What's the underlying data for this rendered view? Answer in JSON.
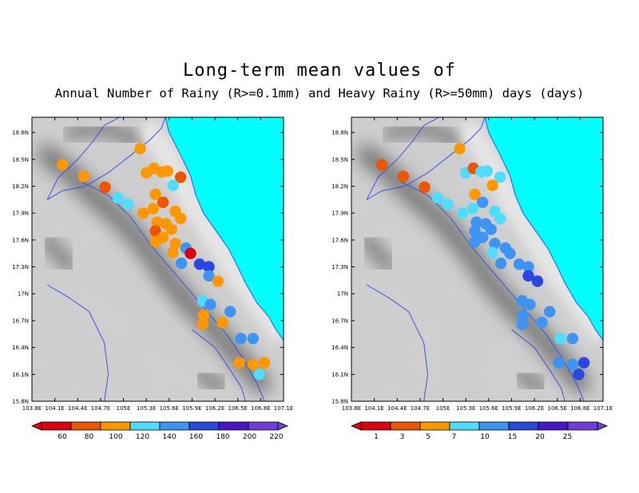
{
  "title": {
    "line1": "Long-term mean values of",
    "line2": "Annual Number of Rainy (R>=0.1mm) and Heavy Rainy (R>=50mm) days (days)"
  },
  "axes": {
    "lat_labels": [
      "18.8N",
      "18.5N",
      "18.2N",
      "17.9N",
      "17.6N",
      "17.3N",
      "17N",
      "16.7N",
      "16.4N",
      "16.1N",
      "15.8N"
    ],
    "lon_labels": [
      "103.8E",
      "104.1E",
      "104.4E",
      "104.7E",
      "105E",
      "105.3E",
      "105.6E",
      "105.9E",
      "106.2E",
      "106.5E",
      "106.8E",
      "107.1E"
    ]
  },
  "colors": {
    "sea": "#00ffff",
    "frame": "#000000",
    "boundary": "#3a55d8",
    "palette": [
      "#e00010",
      "#ee5500",
      "#ff9800",
      "#4fdcff",
      "#3d94f2",
      "#2a47e0",
      "#4a17c8",
      "#6e3ed8"
    ]
  },
  "panels": [
    {
      "name": "rainy-days",
      "colorbar_labels": [
        "60",
        "80",
        "100",
        "120",
        "140",
        "160",
        "180",
        "200",
        "220"
      ]
    },
    {
      "name": "heavy-rainy-days",
      "colorbar_labels": [
        "1",
        "3",
        "5",
        "7",
        "10",
        "15",
        "20",
        "25"
      ]
    }
  ],
  "stations": [
    {
      "lon": 104.2,
      "lat": 18.44
    },
    {
      "lon": 104.48,
      "lat": 18.31
    },
    {
      "lon": 104.76,
      "lat": 18.19
    },
    {
      "lon": 104.93,
      "lat": 18.07
    },
    {
      "lon": 105.06,
      "lat": 18.0
    },
    {
      "lon": 105.22,
      "lat": 18.62
    },
    {
      "lon": 105.3,
      "lat": 18.35
    },
    {
      "lon": 105.4,
      "lat": 18.4
    },
    {
      "lon": 105.5,
      "lat": 18.36
    },
    {
      "lon": 105.58,
      "lat": 18.37
    },
    {
      "lon": 105.75,
      "lat": 18.3
    },
    {
      "lon": 105.65,
      "lat": 18.21
    },
    {
      "lon": 105.42,
      "lat": 18.11
    },
    {
      "lon": 105.52,
      "lat": 18.02
    },
    {
      "lon": 105.39,
      "lat": 17.95
    },
    {
      "lon": 105.26,
      "lat": 17.9
    },
    {
      "lon": 105.68,
      "lat": 17.92
    },
    {
      "lon": 105.75,
      "lat": 17.84
    },
    {
      "lon": 105.44,
      "lat": 17.8
    },
    {
      "lon": 105.56,
      "lat": 17.78
    },
    {
      "lon": 105.42,
      "lat": 17.7
    },
    {
      "lon": 105.63,
      "lat": 17.72
    },
    {
      "lon": 105.52,
      "lat": 17.63
    },
    {
      "lon": 105.42,
      "lat": 17.58
    },
    {
      "lon": 105.68,
      "lat": 17.56
    },
    {
      "lon": 105.82,
      "lat": 17.51
    },
    {
      "lon": 105.88,
      "lat": 17.45
    },
    {
      "lon": 105.65,
      "lat": 17.46
    },
    {
      "lon": 105.76,
      "lat": 17.34
    },
    {
      "lon": 106.0,
      "lat": 17.33
    },
    {
      "lon": 106.12,
      "lat": 17.3
    },
    {
      "lon": 106.12,
      "lat": 17.2
    },
    {
      "lon": 106.24,
      "lat": 17.14
    },
    {
      "lon": 106.04,
      "lat": 16.92
    },
    {
      "lon": 106.14,
      "lat": 16.88
    },
    {
      "lon": 106.4,
      "lat": 16.8
    },
    {
      "lon": 106.05,
      "lat": 16.76
    },
    {
      "lon": 106.3,
      "lat": 16.68
    },
    {
      "lon": 106.04,
      "lat": 16.66
    },
    {
      "lon": 106.54,
      "lat": 16.5
    },
    {
      "lon": 106.7,
      "lat": 16.5
    },
    {
      "lon": 106.52,
      "lat": 16.23
    },
    {
      "lon": 106.7,
      "lat": 16.21
    },
    {
      "lon": 106.85,
      "lat": 16.23
    },
    {
      "lon": 106.78,
      "lat": 16.1
    }
  ],
  "rainy_days": [
    90,
    100,
    70,
    135,
    125,
    110,
    90,
    105,
    95,
    100,
    75,
    130,
    110,
    70,
    105,
    100,
    90,
    105,
    100,
    95,
    80,
    105,
    100,
    100,
    95,
    145,
    65,
    90,
    150,
    170,
    160,
    150,
    115,
    135,
    140,
    150,
    115,
    105,
    105,
    140,
    155,
    105,
    110,
    100,
    135
  ],
  "heavy_rainy_days": [
    4,
    4,
    4,
    8,
    8,
    6,
    8,
    4,
    8,
    9,
    8,
    6,
    5,
    10,
    9,
    9,
    9,
    8,
    10,
    11,
    10,
    10,
    10,
    10,
    13,
    12,
    10,
    9,
    10,
    12,
    13,
    16,
    18,
    11,
    12,
    13,
    12,
    11,
    10,
    9,
    11,
    11,
    13,
    16,
    17
  ]
}
